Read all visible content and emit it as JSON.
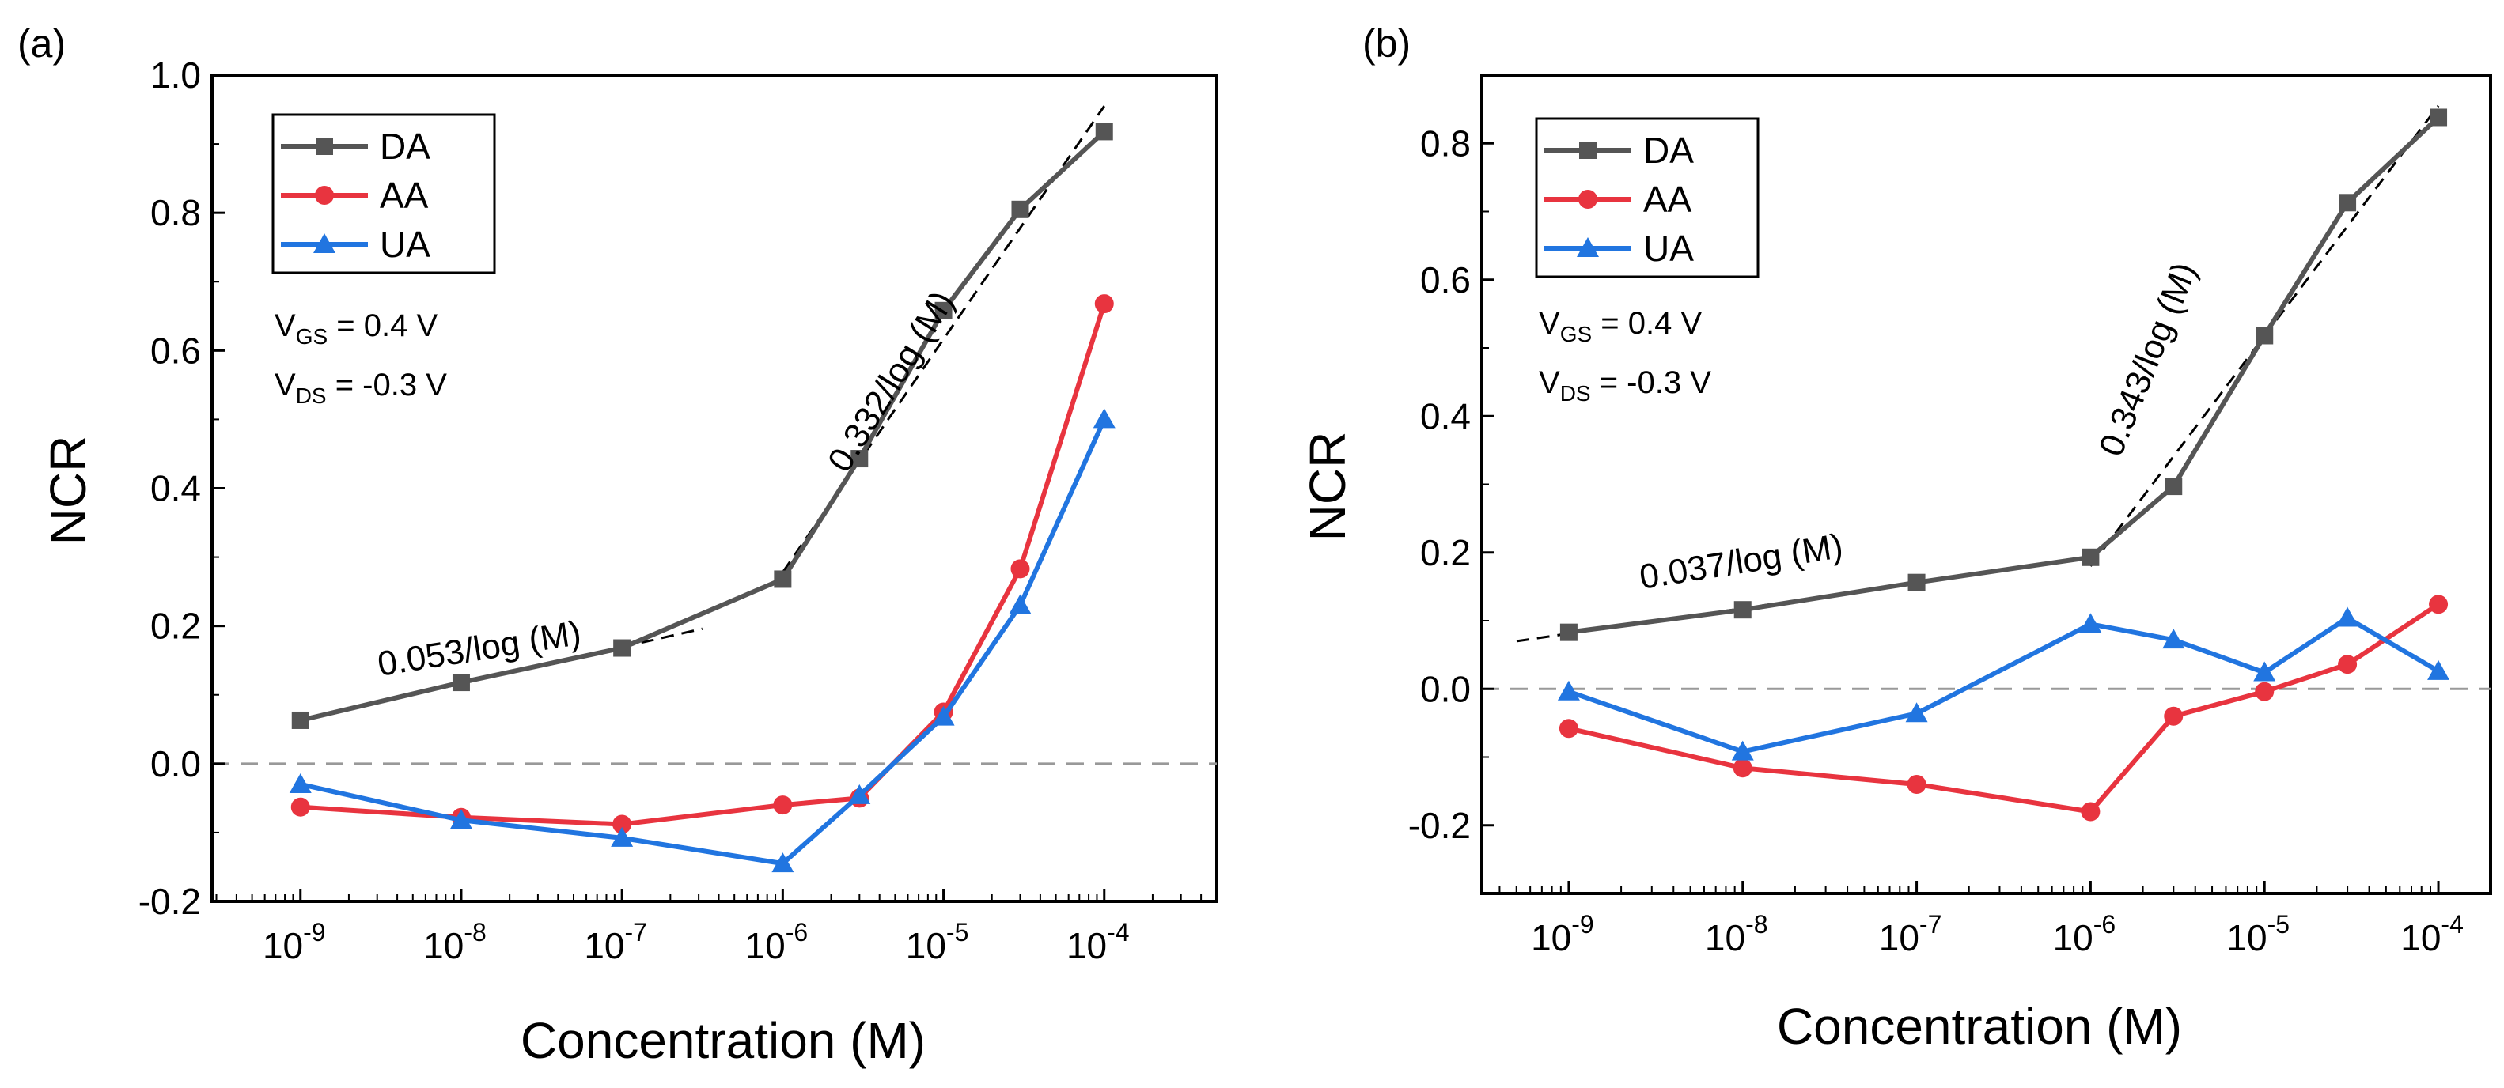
{
  "chart_data": [
    {
      "type": "line",
      "panel_label": "(a)",
      "xlabel": "Concentration (M)",
      "ylabel": "NCR",
      "x_scale": "log",
      "x_log_range": [
        -9.55,
        -3.3
      ],
      "ylim": [
        -0.2,
        1.0
      ],
      "y_ticks": [
        "-0.2",
        "0.0",
        "0.2",
        "0.4",
        "0.6",
        "0.8",
        "1.0"
      ],
      "x_ticks": [
        {
          "base": "10",
          "exp": "-9"
        },
        {
          "base": "10",
          "exp": "-8"
        },
        {
          "base": "10",
          "exp": "-7"
        },
        {
          "base": "10",
          "exp": "-6"
        },
        {
          "base": "10",
          "exp": "-5"
        },
        {
          "base": "10",
          "exp": "-4"
        }
      ],
      "zero_line": true,
      "legend_position": "top-left",
      "series": [
        {
          "name": "DA",
          "color": "#555555",
          "marker": "square",
          "points": [
            [
              -9,
              0.063
            ],
            [
              -8,
              0.118
            ],
            [
              -7,
              0.168
            ],
            [
              -6,
              0.268
            ],
            [
              -5.523,
              0.443
            ],
            [
              -5,
              0.658
            ],
            [
              -4.523,
              0.805
            ],
            [
              -4,
              0.918
            ]
          ]
        },
        {
          "name": "AA",
          "color": "#e8343f",
          "marker": "circle",
          "points": [
            [
              -9,
              -0.063
            ],
            [
              -8,
              -0.078
            ],
            [
              -7,
              -0.088
            ],
            [
              -6,
              -0.06
            ],
            [
              -5.523,
              -0.05
            ],
            [
              -5,
              0.075
            ],
            [
              -4.523,
              0.283
            ],
            [
              -4,
              0.668
            ]
          ]
        },
        {
          "name": "UA",
          "color": "#2175e0",
          "marker": "triangle",
          "points": [
            [
              -9,
              -0.03
            ],
            [
              -8,
              -0.082
            ],
            [
              -7,
              -0.108
            ],
            [
              -6,
              -0.145
            ],
            [
              -5.523,
              -0.046
            ],
            [
              -5,
              0.068
            ],
            [
              -4.523,
              0.23
            ],
            [
              -4,
              0.5
            ]
          ]
        }
      ],
      "fit_lines": [
        {
          "from": [
            -9,
            0.063
          ],
          "to": [
            -6.5,
            0.196
          ]
        },
        {
          "from": [
            -6,
            0.278
          ],
          "to": [
            -4,
            0.955
          ]
        }
      ],
      "conditions": [
        {
          "main": "V",
          "sub": "GS",
          "rest": " = 0.4 V"
        },
        {
          "main": "V",
          "sub": "DS",
          "rest": " = -0.3 V"
        }
      ],
      "slope_labels": [
        "0.053/log (M)",
        "0.332/log (M)"
      ]
    },
    {
      "type": "line",
      "panel_label": "(b)",
      "xlabel": "Concentration (M)",
      "ylabel": "NCR",
      "x_scale": "log",
      "x_log_range": [
        -9.5,
        -3.7
      ],
      "ylim": [
        -0.3,
        0.9
      ],
      "y_ticks": [
        "-0.2",
        "0.0",
        "0.2",
        "0.4",
        "0.6",
        "0.8"
      ],
      "x_ticks": [
        {
          "base": "10",
          "exp": "-9"
        },
        {
          "base": "10",
          "exp": "-8"
        },
        {
          "base": "10",
          "exp": "-7"
        },
        {
          "base": "10",
          "exp": "-6"
        },
        {
          "base": "10",
          "exp": "-5"
        },
        {
          "base": "10",
          "exp": "-4"
        }
      ],
      "zero_line": true,
      "legend_position": "top-left",
      "series": [
        {
          "name": "DA",
          "color": "#555555",
          "marker": "square",
          "points": [
            [
              -9,
              0.083
            ],
            [
              -8,
              0.116
            ],
            [
              -7,
              0.156
            ],
            [
              -6,
              0.193
            ],
            [
              -5.523,
              0.297
            ],
            [
              -5,
              0.518
            ],
            [
              -4.523,
              0.713
            ],
            [
              -4,
              0.838
            ]
          ]
        },
        {
          "name": "AA",
          "color": "#e8343f",
          "marker": "circle",
          "points": [
            [
              -9,
              -0.058
            ],
            [
              -8,
              -0.116
            ],
            [
              -7,
              -0.14
            ],
            [
              -6,
              -0.18
            ],
            [
              -5.523,
              -0.04
            ],
            [
              -5,
              -0.004
            ],
            [
              -4.523,
              0.036
            ],
            [
              -4,
              0.124
            ]
          ]
        },
        {
          "name": "UA",
          "color": "#2175e0",
          "marker": "triangle",
          "points": [
            [
              -9,
              -0.004
            ],
            [
              -8,
              -0.092
            ],
            [
              -7,
              -0.036
            ],
            [
              -6,
              0.095
            ],
            [
              -5.523,
              0.072
            ],
            [
              -5,
              0.024
            ],
            [
              -4.523,
              0.104
            ],
            [
              -4,
              0.026
            ]
          ]
        }
      ],
      "fit_lines": [
        {
          "from": [
            -9.3,
            0.07
          ],
          "to": [
            -6,
            0.192
          ]
        },
        {
          "from": [
            -6,
            0.18
          ],
          "to": [
            -4,
            0.855
          ]
        }
      ],
      "conditions": [
        {
          "main": "V",
          "sub": "GS",
          "rest": " = 0.4 V"
        },
        {
          "main": "V",
          "sub": "DS",
          "rest": " = -0.3 V"
        }
      ],
      "slope_labels": [
        "0.037/log (M)",
        "0.343/log (M)"
      ]
    }
  ]
}
